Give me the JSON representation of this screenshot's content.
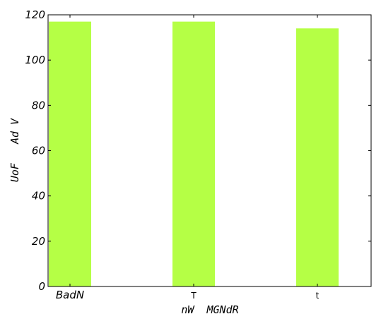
{
  "chart_data": {
    "type": "bar",
    "categories": [
      "BadN",
      "T",
      "t"
    ],
    "category_label_italic": [
      true,
      false,
      false
    ],
    "values": [
      117,
      117,
      114
    ],
    "xlabel": "nW  MGNdR",
    "ylabel": "UoF   Ad V",
    "ylim": [
      0,
      120
    ],
    "yticks": [
      0,
      20,
      40,
      60,
      80,
      100,
      120
    ],
    "ytick_labels": [
      "0",
      "20",
      "40",
      "60",
      "80",
      "100",
      "120"
    ],
    "bar_color": "#b5ff45",
    "grid": false,
    "legend": "none"
  }
}
